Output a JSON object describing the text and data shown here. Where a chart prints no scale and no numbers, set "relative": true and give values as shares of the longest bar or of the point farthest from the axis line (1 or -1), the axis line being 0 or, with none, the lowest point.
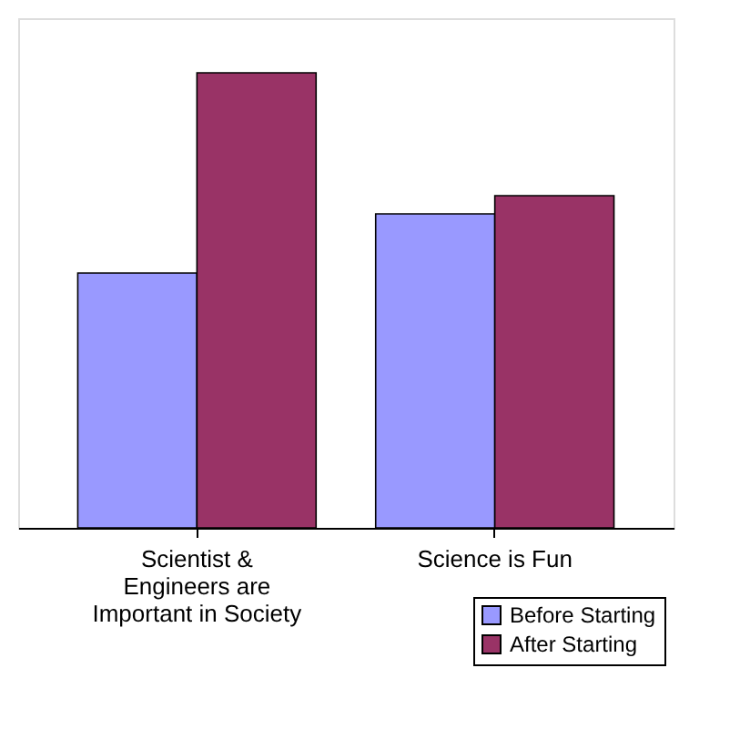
{
  "chart_data": {
    "type": "bar",
    "relative": true,
    "categories": [
      "Scientist &\nEngineers are\nImportant in Society",
      "Science is Fun"
    ],
    "series": [
      {
        "name": "Before Starting",
        "color": "#9999ff",
        "values": [
          0.56,
          0.69
        ]
      },
      {
        "name": "After Starting",
        "color": "#993366",
        "values": [
          1,
          0.73
        ]
      }
    ],
    "grid": false,
    "legend": "bottom right"
  }
}
